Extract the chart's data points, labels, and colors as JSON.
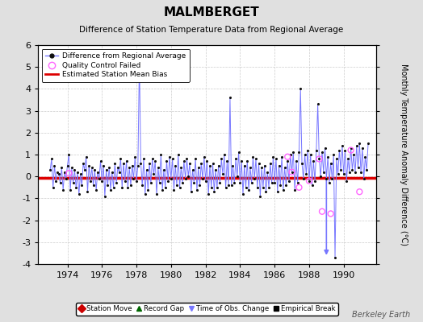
{
  "title": "MALMBERGET",
  "subtitle": "Difference of Station Temperature Data from Regional Average",
  "ylabel_right": "Monthly Temperature Anomaly Difference (°C)",
  "watermark": "Berkeley Earth",
  "ylim": [
    -4,
    6
  ],
  "xlim": [
    1972.3,
    1991.9
  ],
  "xticks": [
    1974,
    1976,
    1978,
    1980,
    1982,
    1984,
    1986,
    1988,
    1990
  ],
  "yticks_left": [
    -4,
    -3,
    -2,
    -1,
    0,
    1,
    2,
    3,
    4,
    5,
    6
  ],
  "yticks_right": [
    -4,
    -3,
    -2,
    -1,
    0,
    1,
    2,
    3,
    4,
    5,
    6
  ],
  "bias_line": -0.05,
  "bias_color": "#dd0000",
  "line_color": "#7777ff",
  "dot_color": "#111111",
  "qc_color": "#ff66ff",
  "background_color": "#e0e0e0",
  "plot_bg_color": "#ffffff",
  "grid_color": "#cccccc",
  "data_x": [
    1973.0,
    1973.083,
    1973.167,
    1973.25,
    1973.333,
    1973.417,
    1973.5,
    1973.583,
    1973.667,
    1973.75,
    1973.833,
    1973.917,
    1974.0,
    1974.083,
    1974.167,
    1974.25,
    1974.333,
    1974.417,
    1974.5,
    1974.583,
    1974.667,
    1974.75,
    1974.833,
    1974.917,
    1975.0,
    1975.083,
    1975.167,
    1975.25,
    1975.333,
    1975.417,
    1975.5,
    1975.583,
    1975.667,
    1975.75,
    1975.833,
    1975.917,
    1976.0,
    1976.083,
    1976.167,
    1976.25,
    1976.333,
    1976.417,
    1976.5,
    1976.583,
    1976.667,
    1976.75,
    1976.833,
    1976.917,
    1977.0,
    1977.083,
    1977.167,
    1977.25,
    1977.333,
    1977.417,
    1977.5,
    1977.583,
    1977.667,
    1977.75,
    1977.833,
    1977.917,
    1978.0,
    1978.083,
    1978.167,
    1978.25,
    1978.333,
    1978.417,
    1978.5,
    1978.583,
    1978.667,
    1978.75,
    1978.833,
    1978.917,
    1979.0,
    1979.083,
    1979.167,
    1979.25,
    1979.333,
    1979.417,
    1979.5,
    1979.583,
    1979.667,
    1979.75,
    1979.833,
    1979.917,
    1980.0,
    1980.083,
    1980.167,
    1980.25,
    1980.333,
    1980.417,
    1980.5,
    1980.583,
    1980.667,
    1980.75,
    1980.833,
    1980.917,
    1981.0,
    1981.083,
    1981.167,
    1981.25,
    1981.333,
    1981.417,
    1981.5,
    1981.583,
    1981.667,
    1981.75,
    1981.833,
    1981.917,
    1982.0,
    1982.083,
    1982.167,
    1982.25,
    1982.333,
    1982.417,
    1982.5,
    1982.583,
    1982.667,
    1982.75,
    1982.833,
    1982.917,
    1983.0,
    1983.083,
    1983.167,
    1983.25,
    1983.333,
    1983.417,
    1983.5,
    1983.583,
    1983.667,
    1983.75,
    1983.833,
    1983.917,
    1984.0,
    1984.083,
    1984.167,
    1984.25,
    1984.333,
    1984.417,
    1984.5,
    1984.583,
    1984.667,
    1984.75,
    1984.833,
    1984.917,
    1985.0,
    1985.083,
    1985.167,
    1985.25,
    1985.333,
    1985.417,
    1985.5,
    1985.583,
    1985.667,
    1985.75,
    1985.833,
    1985.917,
    1986.0,
    1986.083,
    1986.167,
    1986.25,
    1986.333,
    1986.417,
    1986.5,
    1986.583,
    1986.667,
    1986.75,
    1986.833,
    1986.917,
    1987.0,
    1987.083,
    1987.167,
    1987.25,
    1987.333,
    1987.417,
    1987.5,
    1987.583,
    1987.667,
    1987.75,
    1987.833,
    1987.917,
    1988.0,
    1988.083,
    1988.167,
    1988.25,
    1988.333,
    1988.417,
    1988.5,
    1988.583,
    1988.667,
    1988.75,
    1988.833,
    1988.917,
    1989.0,
    1989.083,
    1989.167,
    1989.25,
    1989.333,
    1989.417,
    1989.5,
    1989.583,
    1989.667,
    1989.75,
    1989.833,
    1989.917,
    1990.0,
    1990.083,
    1990.167,
    1990.25,
    1990.333,
    1990.417,
    1990.5,
    1990.583,
    1990.667,
    1990.75,
    1990.833,
    1990.917,
    1991.0,
    1991.083,
    1991.167,
    1991.25,
    1991.333,
    1991.417
  ],
  "data_y": [
    0.3,
    0.8,
    -0.5,
    0.5,
    -0.2,
    0.2,
    0.1,
    -0.3,
    0.4,
    -0.6,
    0.2,
    -0.1,
    0.5,
    1.0,
    -0.6,
    0.4,
    -0.3,
    0.3,
    -0.5,
    0.2,
    -0.8,
    0.1,
    -0.4,
    0.6,
    0.3,
    0.9,
    -0.7,
    0.5,
    -0.2,
    0.4,
    -0.4,
    0.3,
    -0.6,
    0.2,
    -0.1,
    0.7,
    -0.2,
    0.5,
    -0.9,
    0.3,
    -0.4,
    0.4,
    -0.6,
    0.2,
    -0.5,
    0.6,
    -0.3,
    0.4,
    0.2,
    0.8,
    -0.5,
    0.6,
    -0.2,
    0.7,
    -0.5,
    0.4,
    -0.4,
    0.5,
    -0.1,
    0.9,
    -0.2,
    0.5,
    5.3,
    0.6,
    -0.4,
    0.8,
    -0.8,
    0.3,
    -0.6,
    0.6,
    -0.3,
    0.8,
    0.1,
    0.7,
    -0.8,
    0.4,
    -0.3,
    1.0,
    -0.6,
    0.3,
    -0.5,
    0.7,
    -0.2,
    0.9,
    -0.1,
    0.8,
    -0.6,
    0.5,
    -0.4,
    1.0,
    -0.5,
    0.4,
    -0.3,
    0.7,
    -0.1,
    0.8,
    0.0,
    0.6,
    -0.7,
    0.3,
    -0.3,
    0.8,
    -0.6,
    0.4,
    -0.4,
    0.6,
    -0.1,
    0.9,
    -0.2,
    0.7,
    -0.8,
    0.5,
    -0.5,
    0.6,
    -0.7,
    0.3,
    -0.5,
    0.5,
    -0.3,
    0.8,
    0.1,
    1.0,
    -0.5,
    0.7,
    -0.4,
    3.6,
    -0.4,
    0.5,
    -0.3,
    0.8,
    0.0,
    1.1,
    -0.3,
    0.7,
    -0.8,
    0.5,
    -0.5,
    0.7,
    -0.6,
    0.4,
    -0.3,
    0.9,
    -0.1,
    0.8,
    -0.5,
    0.6,
    -0.9,
    0.4,
    -0.5,
    0.5,
    -0.7,
    0.2,
    -0.5,
    0.6,
    -0.3,
    0.9,
    -0.3,
    0.8,
    -0.7,
    0.5,
    -0.4,
    0.9,
    -0.6,
    0.4,
    -0.4,
    0.7,
    -0.2,
    1.0,
    0.2,
    1.1,
    -0.6,
    0.7,
    -0.3,
    1.1,
    4.0,
    0.6,
    -0.1,
    1.0,
    0.1,
    1.2,
    -0.2,
    1.0,
    -0.4,
    0.7,
    -0.2,
    1.2,
    3.3,
    0.8,
    0.0,
    1.1,
    0.2,
    1.3,
    -0.1,
    0.9,
    -0.3,
    0.6,
    -0.1,
    1.0,
    -3.7,
    0.8,
    0.1,
    1.2,
    0.3,
    1.4,
    0.1,
    1.2,
    -0.2,
    0.8,
    0.2,
    1.3,
    0.3,
    1.0,
    0.2,
    1.4,
    0.4,
    1.5,
    0.2,
    1.3,
    -0.1,
    0.9,
    0.3,
    1.5
  ],
  "qc_points_x": [
    1974.083,
    1986.75,
    1987.0,
    1987.417,
    1988.0,
    1988.583,
    1988.75,
    1989.25,
    1990.417,
    1990.917
  ],
  "qc_points_y": [
    0.15,
    0.9,
    0.2,
    -0.5,
    -0.2,
    0.8,
    -1.6,
    -1.7,
    1.2,
    -0.7
  ],
  "obs_change_x": 1989.0,
  "obs_change_y_top": 0.0,
  "obs_change_y_bot": -3.7
}
